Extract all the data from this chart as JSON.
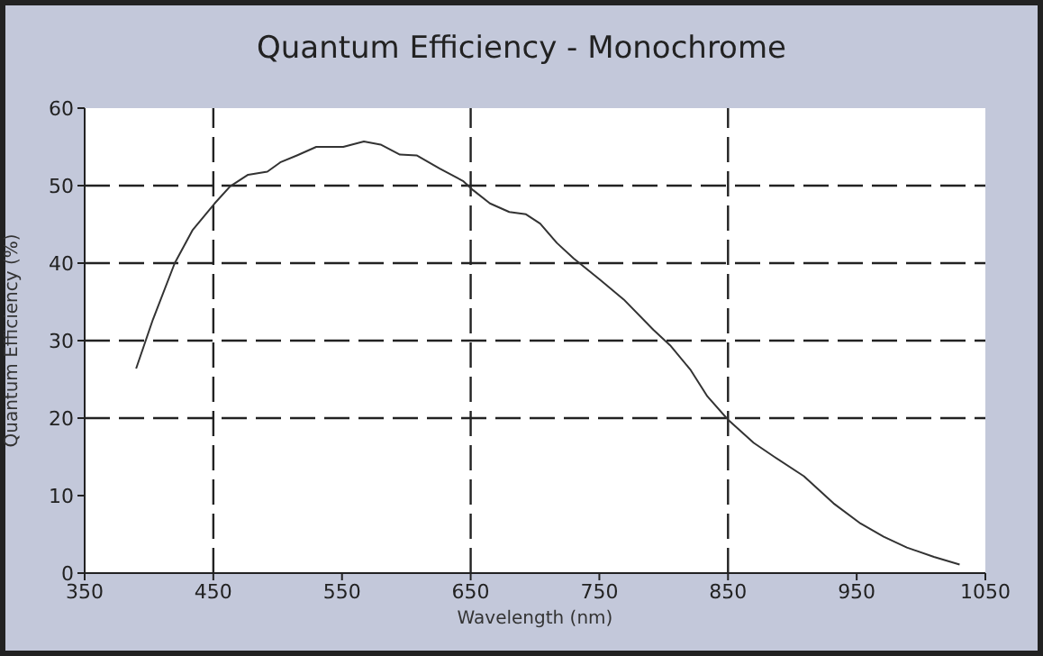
{
  "chart_data": {
    "type": "line",
    "title": "Quantum Efficiency - Monochrome",
    "xlabel": "Wavelength (nm)",
    "ylabel": "Quantum Efficiency (%)",
    "series": [
      {
        "color": "#333333",
        "x": [
          390,
          403,
          420,
          434,
          451,
          463,
          477,
          492,
          502,
          515,
          530,
          551,
          567,
          580,
          595,
          608,
          626,
          644,
          652,
          665,
          680,
          693,
          704,
          717,
          730,
          751,
          769,
          792,
          805,
          821,
          834,
          850,
          870,
          886,
          909,
          932,
          953,
          971,
          989,
          1010,
          1030
        ],
        "values": [
          26.4,
          32.7,
          40,
          44.3,
          47.7,
          49.9,
          51.4,
          51.8,
          53,
          53.9,
          55,
          55,
          55.7,
          55.3,
          54,
          53.9,
          52.2,
          50.6,
          49.4,
          47.7,
          46.6,
          46.3,
          45.1,
          42.6,
          40.6,
          37.8,
          35.3,
          31.4,
          29.4,
          26.2,
          22.8,
          19.8,
          16.8,
          15,
          12.5,
          9,
          6.4,
          4.7,
          3.3,
          2.1,
          1.1
        ]
      }
    ],
    "xlim": [
      350,
      1050
    ],
    "xticks": [
      350,
      450,
      550,
      650,
      750,
      850,
      950,
      1050
    ],
    "ylim": [
      0,
      60
    ],
    "yticks": [
      0,
      10,
      20,
      30,
      40,
      50,
      60
    ],
    "ref_lines": [
      {
        "axis": "x",
        "value": 450,
        "color": "#222222",
        "line_style": "dashed"
      },
      {
        "axis": "x",
        "value": 650,
        "color": "#222222",
        "line_style": "dashed"
      },
      {
        "axis": "x",
        "value": 850,
        "color": "#222222",
        "line_style": "dashed"
      },
      {
        "axis": "y",
        "value": 20,
        "color": "#222222",
        "line_style": "dashed"
      },
      {
        "axis": "y",
        "value": 30,
        "color": "#222222",
        "line_style": "dashed"
      },
      {
        "axis": "y",
        "value": 40,
        "color": "#222222",
        "line_style": "dashed"
      },
      {
        "axis": "y",
        "value": 50,
        "color": "#222222",
        "line_style": "dashed"
      }
    ],
    "marker": "none",
    "line_style": "solid",
    "grid": false,
    "legend": false
  }
}
